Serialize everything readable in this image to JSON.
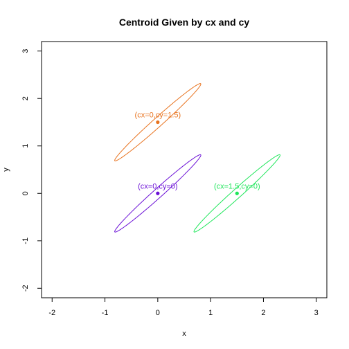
{
  "chart_data": {
    "type": "scatter",
    "title": "Centroid Given by cx and cy",
    "xlabel": "x",
    "ylabel": "y",
    "xlim": [
      -2.2,
      3.2
    ],
    "ylim": [
      -2.2,
      3.2
    ],
    "x_ticks": [
      -2,
      -1,
      0,
      1,
      2,
      3
    ],
    "y_ticks": [
      -2,
      -1,
      0,
      1,
      2,
      3
    ],
    "grid": false,
    "series": [
      {
        "label": "(cx=0,cy=1.5)",
        "color": "#e8731f",
        "cx": 0,
        "cy": 1.5,
        "ellipse": {
          "semi_major": 1.15,
          "semi_minor": 0.09,
          "angle_deg": 45
        }
      },
      {
        "label": "(cx=0,cy=0)",
        "color": "#6a0fd6",
        "cx": 0,
        "cy": 0,
        "ellipse": {
          "semi_major": 1.15,
          "semi_minor": 0.09,
          "angle_deg": 45
        }
      },
      {
        "label": "(cx=1.5,cy=0)",
        "color": "#1ee65a",
        "cx": 1.5,
        "cy": 0,
        "ellipse": {
          "semi_major": 1.15,
          "semi_minor": 0.09,
          "angle_deg": 45
        }
      }
    ]
  }
}
